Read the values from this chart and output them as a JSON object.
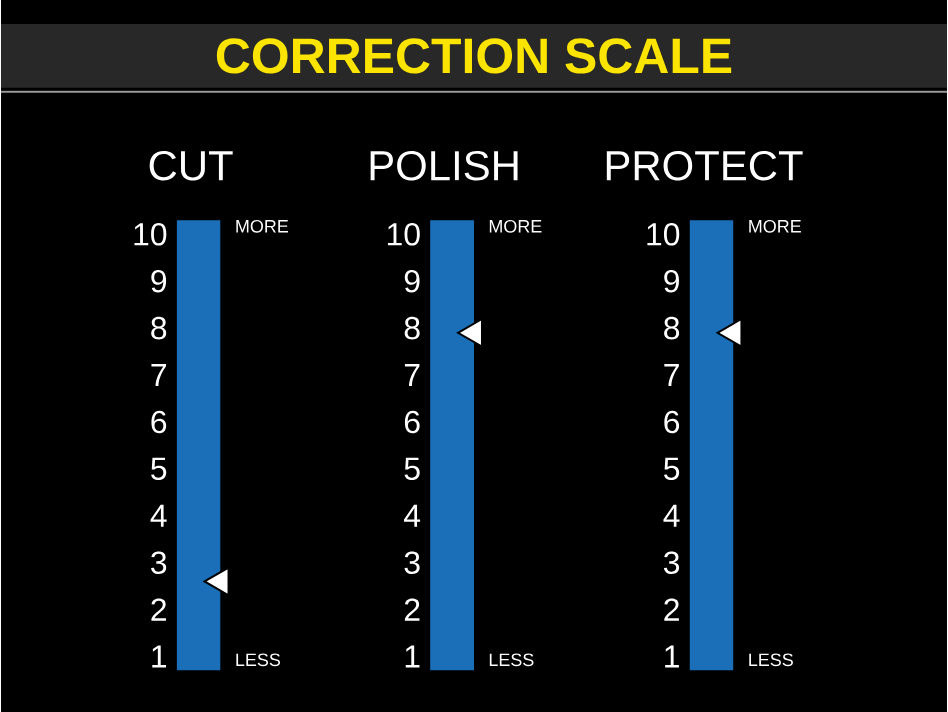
{
  "chart_data": {
    "type": "scatter",
    "title": "CORRECTION SCALE",
    "categories": [
      "CUT",
      "POLISH",
      "PROTECT"
    ],
    "marker": "triangle",
    "series": [
      {
        "type": "bar",
        "color": "#1a6fb8",
        "values": [
          10.3,
          10.3,
          10.3
        ]
      },
      {
        "color": "#ffffff",
        "values": [
          2.6,
          null,
          null
        ]
      },
      {
        "color": "#ffffff",
        "values": [
          null,
          7.9,
          null
        ],
        "axis": "y2"
      },
      {
        "color": "#ffffff",
        "values": [
          null,
          null,
          7.9
        ],
        "axis": "y3"
      }
    ],
    "ylim": [
      0.7,
      10.4
    ],
    "yticks": [
      1,
      2,
      3,
      4,
      5,
      6,
      7,
      8,
      9,
      10
    ],
    "y2lim": [
      0.7,
      10.4
    ],
    "y2ticks": [
      1,
      2,
      3,
      4,
      5,
      6,
      7,
      8,
      9,
      10
    ],
    "y3lim": [
      0.7,
      10.4
    ],
    "y3ticks": [
      1,
      2,
      3,
      4,
      5,
      6,
      7,
      8,
      9,
      10
    ],
    "annotations": [
      "MORE",
      "LESS",
      "MORE",
      "LESS",
      "MORE",
      "LESS"
    ]
  }
}
